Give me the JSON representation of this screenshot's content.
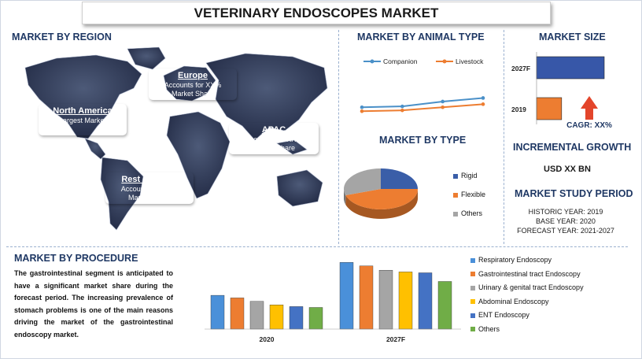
{
  "title": "VETERINARY ENDOSCOPES MARKET",
  "region": {
    "heading": "MARKET BY REGION",
    "callouts": [
      {
        "name": "Europe",
        "text1": "Accounts for XX%",
        "text2": "Market Share",
        "color": "#a0522d"
      },
      {
        "name": "North America",
        "text1": "Largest Market",
        "text2": "",
        "color": "#c0262b"
      },
      {
        "name": "APAC",
        "text1": "Accounts for XX%",
        "text2": "Market Share",
        "color": "#4f5b3a"
      },
      {
        "name": "Rest of World",
        "text1": "Accounts for XX%",
        "text2": "Market Share",
        "color": "#1f3a7a"
      }
    ]
  },
  "animal": {
    "heading": "MARKET BY ANIMAL TYPE",
    "chart_data": {
      "type": "line",
      "series": [
        {
          "name": "Companion",
          "values": [
            4.2,
            4.6,
            6.8,
            8.4
          ],
          "color": "#4a90c8"
        },
        {
          "name": "Livestock",
          "values": [
            2.4,
            2.8,
            4.2,
            5.6
          ],
          "color": "#ed7d31"
        }
      ]
    }
  },
  "size": {
    "heading": "MARKET SIZE",
    "chart_data": {
      "type": "bar",
      "categories": [
        "2027F",
        "2019"
      ],
      "values": [
        100,
        37
      ],
      "colors": [
        "#3757a8",
        "#ed7d31"
      ]
    },
    "cagr": "CAGR: XX%",
    "arrow_color": "#e3452b"
  },
  "growth": {
    "heading": "INCREMENTAL GROWTH",
    "value": "USD XX BN"
  },
  "period": {
    "heading": "MARKET STUDY PERIOD",
    "lines": [
      "HISTORIC YEAR: 2019",
      "BASE YEAR: 2020",
      "FORECAST YEAR: 2021-2027"
    ]
  },
  "type_section": {
    "heading": "MARKET BY TYPE",
    "chart_data": {
      "type": "pie",
      "labels": [
        "Rigid",
        "Flexible",
        "Others"
      ],
      "values": [
        25,
        45,
        30
      ],
      "colors": [
        "#3a5ea8",
        "#ed7d31",
        "#a5a5a5"
      ]
    }
  },
  "procedure": {
    "heading": "MARKET BY PROCEDURE",
    "paragraph": "The gastrointestinal segment is anticipated to have a significant market share during the forecast period. The increasing prevalence of stomach problems is one of the main reasons driving the market of the gastrointestinal endoscopy market.",
    "chart_data": {
      "type": "bar",
      "categories": [
        "2020",
        "2027F"
      ],
      "series": [
        {
          "name": "Respiratory Endoscopy",
          "values": [
            39,
            77
          ],
          "color": "#4a90d9"
        },
        {
          "name": "Gastrointestinal tract Endoscopy",
          "values": [
            36,
            73
          ],
          "color": "#ed7d31"
        },
        {
          "name": "Urinary & genital tract Endoscopy",
          "values": [
            32,
            68
          ],
          "color": "#a5a5a5"
        },
        {
          "name": "Abdominal Endoscopy",
          "values": [
            28,
            66
          ],
          "color": "#ffc000"
        },
        {
          "name": "ENT Endoscopy",
          "values": [
            26,
            65
          ],
          "color": "#4472c4"
        },
        {
          "name": "Others",
          "values": [
            25,
            55
          ],
          "color": "#70ad47"
        }
      ]
    }
  }
}
